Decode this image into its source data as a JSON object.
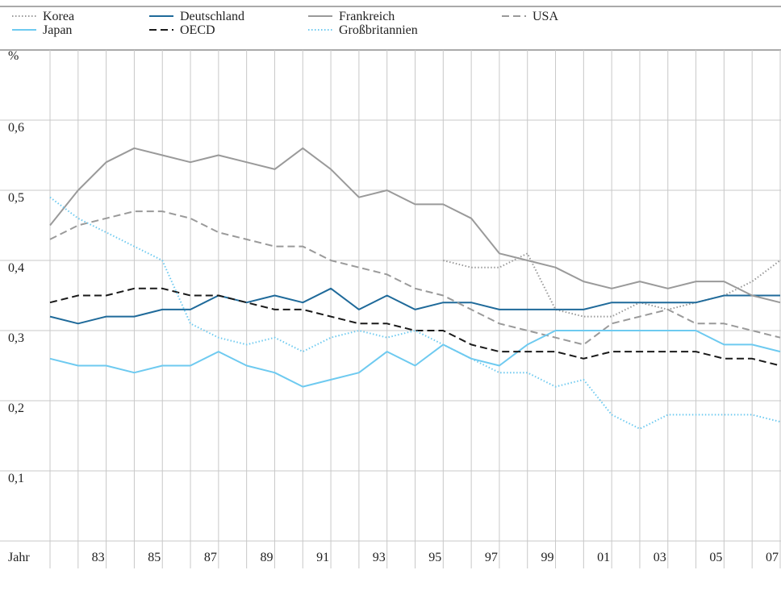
{
  "chart_data": {
    "type": "line",
    "xlabel": "Jahr",
    "ylabel": "%",
    "categories": [
      null,
      null,
      "83",
      null,
      "85",
      null,
      "87",
      null,
      "89",
      null,
      "91",
      null,
      "93",
      null,
      "95",
      null,
      "97",
      null,
      "99",
      null,
      "01",
      null,
      "03",
      null,
      "05",
      null,
      "07"
    ],
    "ylim": [
      0,
      0.7
    ],
    "yticks": [
      {
        "value": 0.1,
        "label": "0,1"
      },
      {
        "value": 0.2,
        "label": "0,2"
      },
      {
        "value": 0.3,
        "label": "0,3"
      },
      {
        "value": 0.4,
        "label": "0,4"
      },
      {
        "value": 0.5,
        "label": "0,5"
      },
      {
        "value": 0.6,
        "label": "0,6"
      }
    ],
    "grid": true,
    "legend": "top",
    "series": [
      {
        "name": "Korea",
        "color": "#9a9a9a",
        "style": "dotted",
        "values": [
          null,
          null,
          null,
          null,
          null,
          null,
          null,
          null,
          null,
          null,
          null,
          null,
          null,
          null,
          0.4,
          0.39,
          0.39,
          0.41,
          0.33,
          0.32,
          0.32,
          0.34,
          0.33,
          0.34,
          0.35,
          0.37,
          0.4
        ]
      },
      {
        "name": "Deutschland",
        "color": "#1f6a9a",
        "style": "solid",
        "values": [
          0.32,
          0.31,
          0.32,
          0.32,
          0.33,
          0.33,
          0.35,
          0.34,
          0.35,
          0.34,
          0.36,
          0.33,
          0.35,
          0.33,
          0.34,
          0.34,
          0.33,
          0.33,
          0.33,
          0.33,
          0.34,
          0.34,
          0.34,
          0.34,
          0.35,
          0.35,
          0.35
        ]
      },
      {
        "name": "Frankreich",
        "color": "#9a9a9a",
        "style": "solid",
        "values": [
          0.45,
          0.5,
          0.54,
          0.56,
          0.55,
          0.54,
          0.55,
          0.54,
          0.53,
          0.56,
          0.53,
          0.49,
          0.5,
          0.48,
          0.48,
          0.46,
          0.41,
          0.4,
          0.39,
          0.37,
          0.36,
          0.37,
          0.36,
          0.37,
          0.37,
          0.35,
          0.34
        ]
      },
      {
        "name": "USA",
        "color": "#9a9a9a",
        "style": "dashed",
        "values": [
          0.43,
          0.45,
          0.46,
          0.47,
          0.47,
          0.46,
          0.44,
          0.43,
          0.42,
          0.42,
          0.4,
          0.39,
          0.38,
          0.36,
          0.35,
          0.33,
          0.31,
          0.3,
          0.29,
          0.28,
          0.31,
          0.32,
          0.33,
          0.31,
          0.31,
          0.3,
          0.29
        ]
      },
      {
        "name": "Japan",
        "color": "#6ecaf0",
        "style": "solid",
        "values": [
          0.26,
          0.25,
          0.25,
          0.24,
          0.25,
          0.25,
          0.27,
          0.25,
          0.24,
          0.22,
          0.23,
          0.24,
          0.27,
          0.25,
          0.28,
          0.26,
          0.25,
          0.28,
          0.3,
          0.3,
          0.3,
          0.3,
          0.3,
          0.3,
          0.28,
          0.28,
          0.27
        ]
      },
      {
        "name": "OECD",
        "color": "#1a1a1a",
        "style": "dashed",
        "values": [
          0.34,
          0.35,
          0.35,
          0.36,
          0.36,
          0.35,
          0.35,
          0.34,
          0.33,
          0.33,
          0.32,
          0.31,
          0.31,
          0.3,
          0.3,
          0.28,
          0.27,
          0.27,
          0.27,
          0.26,
          0.27,
          0.27,
          0.27,
          0.27,
          0.26,
          0.26,
          0.25
        ]
      },
      {
        "name": "Großbritannien",
        "color": "#6ecaf0",
        "style": "dotted",
        "values": [
          0.49,
          0.46,
          0.44,
          0.42,
          0.4,
          0.31,
          0.29,
          0.28,
          0.29,
          0.27,
          0.29,
          0.3,
          0.29,
          0.3,
          0.28,
          0.26,
          0.24,
          0.24,
          0.22,
          0.23,
          0.18,
          0.16,
          0.18,
          0.18,
          0.18,
          0.18,
          0.17
        ]
      }
    ]
  }
}
